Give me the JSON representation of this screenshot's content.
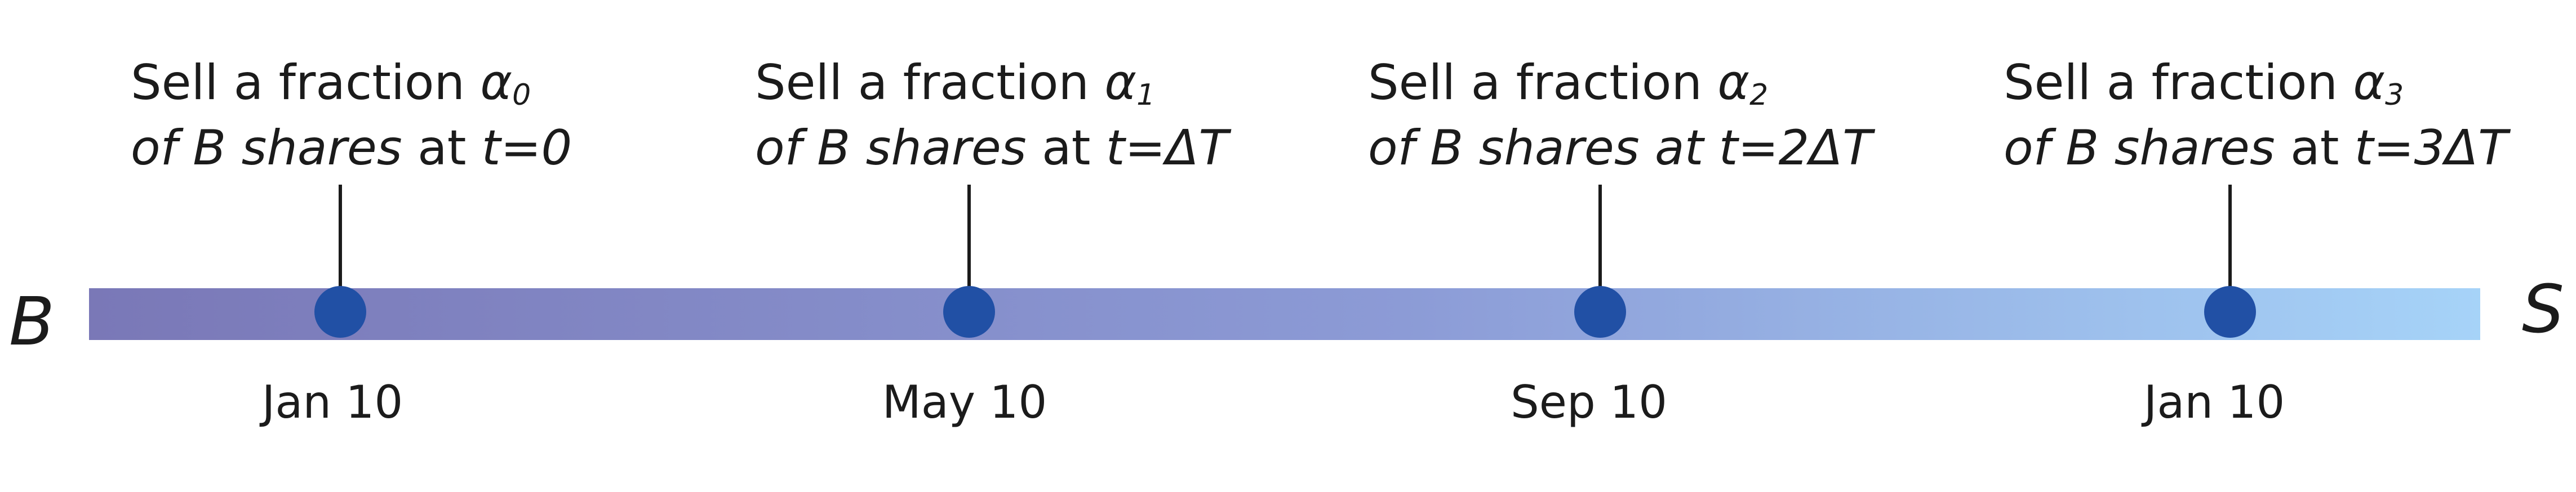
{
  "start_label": "B",
  "end_label": "S",
  "colors": {
    "bar_start": "#7a78b7",
    "bar_mid": "#8c9bd6",
    "bar_end": "#a6d3f8",
    "marker": "#2150a5",
    "stem": "#1b1b1b",
    "text": "#1b1b1b"
  },
  "events": [
    {
      "line1_prefix": "Sell a fraction ",
      "alpha": "α",
      "sub": "0",
      "line2_italic_a": "of B shares",
      "line2_plain": " at ",
      "line2_italic_b": "t=0",
      "date": "Jan 10"
    },
    {
      "line1_prefix": "Sell a fraction ",
      "alpha": "α",
      "sub": "1",
      "line2_italic_a": "of B shares",
      "line2_plain": " at ",
      "line2_italic_b": "t=ΔT",
      "date": "May 10"
    },
    {
      "line1_prefix": "Sell a fraction ",
      "alpha": "α",
      "sub": "2",
      "line2_italic_a": "of B shares at t=2ΔT",
      "line2_plain": "",
      "line2_italic_b": "",
      "date": "Sep 10"
    },
    {
      "line1_prefix": "Sell a fraction ",
      "alpha": "α",
      "sub": "3",
      "line2_italic_a": "of B shares",
      "line2_plain": " at ",
      "line2_italic_b": "t=3ΔT",
      "date": "Jan 10"
    }
  ]
}
